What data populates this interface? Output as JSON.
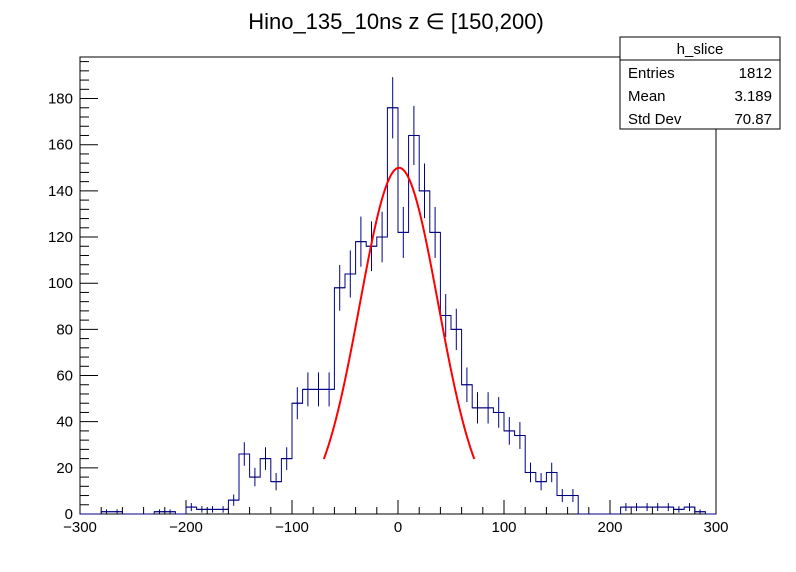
{
  "chart_data": {
    "type": "bar",
    "title": "Hino_135_10ns z  ∈ [150,200)",
    "xlabel": "",
    "ylabel": "",
    "xlim": [
      -300,
      300
    ],
    "ylim": [
      0,
      198
    ],
    "x_ticks": [
      -300,
      -200,
      -100,
      0,
      100,
      200,
      300
    ],
    "y_ticks": [
      0,
      20,
      40,
      60,
      80,
      100,
      120,
      140,
      160,
      180
    ],
    "grid": false,
    "hist_color": "#000080",
    "fit_color": "#ff0000",
    "bin_width": 10,
    "bins": [
      {
        "x": -275,
        "y": 1
      },
      {
        "x": -265,
        "y": 1
      },
      {
        "x": -225,
        "y": 1
      },
      {
        "x": -215,
        "y": 1
      },
      {
        "x": -195,
        "y": 3
      },
      {
        "x": -185,
        "y": 2
      },
      {
        "x": -175,
        "y": 2
      },
      {
        "x": -165,
        "y": 2
      },
      {
        "x": -155,
        "y": 6
      },
      {
        "x": -145,
        "y": 26
      },
      {
        "x": -135,
        "y": 16
      },
      {
        "x": -125,
        "y": 24
      },
      {
        "x": -115,
        "y": 14
      },
      {
        "x": -105,
        "y": 24
      },
      {
        "x": -95,
        "y": 48
      },
      {
        "x": -85,
        "y": 54
      },
      {
        "x": -75,
        "y": 54
      },
      {
        "x": -65,
        "y": 54
      },
      {
        "x": -55,
        "y": 98
      },
      {
        "x": -45,
        "y": 104
      },
      {
        "x": -35,
        "y": 118
      },
      {
        "x": -25,
        "y": 116
      },
      {
        "x": -15,
        "y": 120
      },
      {
        "x": -5,
        "y": 176
      },
      {
        "x": 5,
        "y": 122
      },
      {
        "x": 15,
        "y": 164
      },
      {
        "x": 25,
        "y": 140
      },
      {
        "x": 35,
        "y": 122
      },
      {
        "x": 45,
        "y": 86
      },
      {
        "x": 55,
        "y": 80
      },
      {
        "x": 65,
        "y": 56
      },
      {
        "x": 75,
        "y": 46
      },
      {
        "x": 85,
        "y": 46
      },
      {
        "x": 95,
        "y": 44
      },
      {
        "x": 105,
        "y": 36
      },
      {
        "x": 115,
        "y": 34
      },
      {
        "x": 125,
        "y": 18
      },
      {
        "x": 135,
        "y": 14
      },
      {
        "x": 145,
        "y": 18
      },
      {
        "x": 155,
        "y": 8
      },
      {
        "x": 165,
        "y": 8
      },
      {
        "x": 215,
        "y": 3
      },
      {
        "x": 225,
        "y": 3
      },
      {
        "x": 235,
        "y": 3
      },
      {
        "x": 245,
        "y": 3
      },
      {
        "x": 255,
        "y": 3
      },
      {
        "x": 265,
        "y": 2
      },
      {
        "x": 275,
        "y": 3
      },
      {
        "x": 285,
        "y": 1
      }
    ],
    "fit": {
      "type": "gaussian",
      "amplitude": 150,
      "mean": 1,
      "sigma": 37,
      "x_range": [
        -70,
        72
      ]
    }
  },
  "stats": {
    "name": "h_slice",
    "rows": [
      {
        "label": "Entries",
        "value": "1812"
      },
      {
        "label": "Mean",
        "value": "3.189"
      },
      {
        "label": "Std Dev",
        "value": "70.87"
      }
    ]
  }
}
